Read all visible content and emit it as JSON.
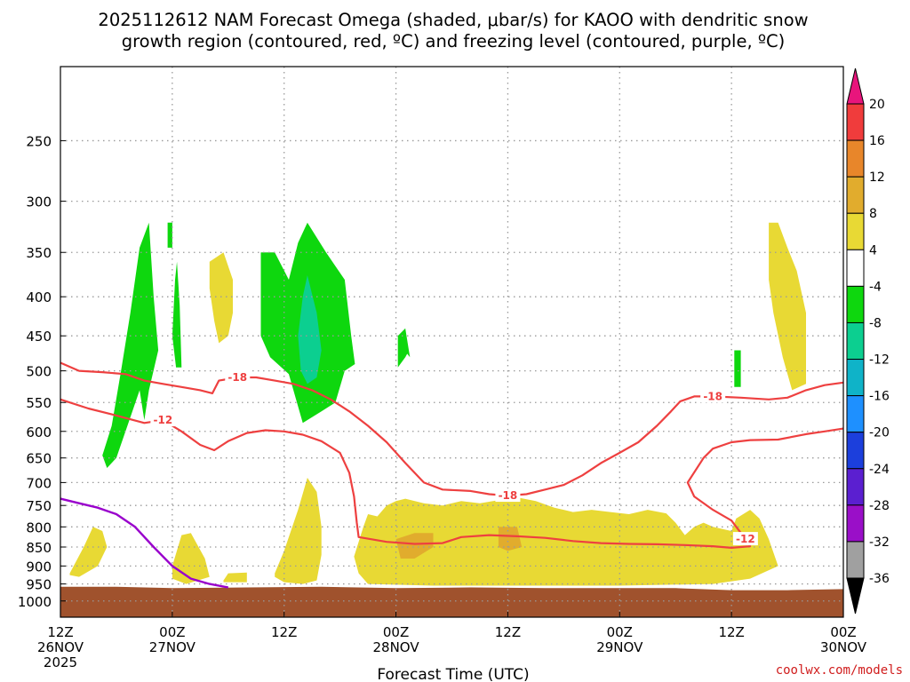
{
  "title": {
    "line1": "2025112612 NAM Forecast Omega (shaded, μbar/s) for KAOO with dendritic snow",
    "line2": "growth region (contoured, red, ºC) and freezing level (contoured, purple, ºC)"
  },
  "credit": "coolwx.com/models",
  "colors": {
    "omega_pos_4_8": "#e8d934",
    "omega_pos_8_12": "#e1ac2d",
    "omega_neg_4_8": "#0ed70e",
    "omega_neg_8_12": "#0ccf90",
    "ground": "#a0522d",
    "dgz_contour": "#ee4040",
    "freezing_contour": "#9900cc",
    "grid": "#9a9a9a"
  },
  "chart_data": {
    "type": "heatmap",
    "title": "2025112612 NAM Forecast Omega (shaded, μbar/s) for KAOO with dendritic snow growth region (contoured, red, ºC) and freezing level (contoured, purple, ºC)",
    "xlabel": "Forecast Time (UTC)",
    "ylabel": "",
    "y_scale": "log pressure (inverted)",
    "xlim_hours": [
      0,
      84
    ],
    "ylim": [
      1050,
      200
    ],
    "grid": "dotted",
    "legend": "colorbar-right",
    "x_ticks": [
      {
        "hour": 0,
        "line1": "12Z",
        "line2": "26NOV",
        "line3": "2025"
      },
      {
        "hour": 12,
        "line1": "00Z",
        "line2": "27NOV",
        "line3": ""
      },
      {
        "hour": 24,
        "line1": "12Z",
        "line2": "",
        "line3": ""
      },
      {
        "hour": 36,
        "line1": "00Z",
        "line2": "28NOV",
        "line3": ""
      },
      {
        "hour": 48,
        "line1": "12Z",
        "line2": "",
        "line3": ""
      },
      {
        "hour": 60,
        "line1": "00Z",
        "line2": "29NOV",
        "line3": ""
      },
      {
        "hour": 72,
        "line1": "12Z",
        "line2": "",
        "line3": ""
      },
      {
        "hour": 84,
        "line1": "00Z",
        "line2": "30NOV",
        "line3": ""
      }
    ],
    "y_ticks": [
      250,
      300,
      350,
      400,
      450,
      500,
      550,
      600,
      650,
      700,
      750,
      800,
      850,
      900,
      950,
      1000
    ],
    "colorbar": {
      "labels": [
        "20",
        "16",
        "12",
        "8",
        "4",
        "-4",
        "-8",
        "-12",
        "-16",
        "-20",
        "-24",
        "-28",
        "-32",
        "-36"
      ],
      "bands": [
        {
          "color": "#f03c3c"
        },
        {
          "color": "#e8862a"
        },
        {
          "color": "#e1ac2d"
        },
        {
          "color": "#e8d934"
        },
        {
          "color": "#ffffff"
        },
        {
          "color": "#0ed70e"
        },
        {
          "color": "#0ccf90"
        },
        {
          "color": "#0fb3c8"
        },
        {
          "color": "#1e90ff"
        },
        {
          "color": "#1c3fdc"
        },
        {
          "color": "#5b1fd0"
        },
        {
          "color": "#9a0fc8"
        },
        {
          "color": "#a0a0a0"
        }
      ],
      "top_arrow_color": "#e8157c",
      "bottom_arrow_color": "#000000"
    },
    "contours": [
      {
        "value": -18,
        "label": "-18",
        "color": "#ee4040",
        "points": [
          [
            0,
            488
          ],
          [
            2,
            500
          ],
          [
            4.5,
            502
          ],
          [
            7,
            505
          ],
          [
            9,
            515
          ],
          [
            11,
            520
          ],
          [
            13,
            525
          ],
          [
            15,
            530
          ],
          [
            16.3,
            535
          ],
          [
            17,
            515
          ],
          [
            19,
            510
          ],
          [
            21,
            510
          ],
          [
            23,
            515
          ],
          [
            25,
            520
          ],
          [
            27,
            530
          ],
          [
            29,
            545
          ],
          [
            31,
            565
          ],
          [
            33,
            590
          ],
          [
            35,
            620
          ],
          [
            37,
            660
          ],
          [
            39,
            700
          ],
          [
            41,
            715
          ],
          [
            44,
            718
          ],
          [
            46,
            725
          ],
          [
            48,
            728
          ],
          [
            50,
            725
          ],
          [
            52,
            715
          ],
          [
            54,
            705
          ],
          [
            56,
            685
          ],
          [
            58,
            660
          ],
          [
            60,
            640
          ],
          [
            62,
            620
          ],
          [
            64,
            590
          ],
          [
            65.5,
            565
          ],
          [
            66.5,
            548
          ],
          [
            68,
            540
          ],
          [
            70,
            540
          ],
          [
            73,
            542
          ],
          [
            76,
            545
          ],
          [
            78,
            542
          ],
          [
            80,
            530
          ],
          [
            82,
            522
          ],
          [
            84,
            518
          ]
        ]
      },
      {
        "value": -12,
        "label": "-12",
        "color": "#ee4040",
        "points": [
          [
            0,
            545
          ],
          [
            3,
            560
          ],
          [
            6,
            572
          ],
          [
            9,
            585
          ],
          [
            11,
            580
          ],
          [
            13,
            600
          ],
          [
            15,
            625
          ],
          [
            16.5,
            635
          ],
          [
            18,
            618
          ],
          [
            20,
            603
          ],
          [
            22,
            598
          ],
          [
            24,
            600
          ],
          [
            26,
            606
          ],
          [
            28,
            618
          ],
          [
            30,
            640
          ],
          [
            31,
            680
          ],
          [
            31.5,
            730
          ],
          [
            31.8,
            790
          ],
          [
            32,
            825
          ],
          [
            35,
            837
          ],
          [
            38,
            842
          ],
          [
            41,
            840
          ],
          [
            43,
            825
          ],
          [
            46,
            820
          ],
          [
            49,
            823
          ],
          [
            52,
            827
          ],
          [
            55,
            835
          ],
          [
            58,
            840
          ],
          [
            61,
            842
          ],
          [
            64,
            843
          ],
          [
            67,
            845
          ],
          [
            70,
            848
          ],
          [
            72,
            852
          ],
          [
            74,
            848
          ],
          [
            73.5,
            830
          ],
          [
            72,
            785
          ],
          [
            70,
            760
          ],
          [
            68,
            730
          ],
          [
            67.3,
            700
          ],
          [
            69,
            650
          ],
          [
            70,
            632
          ],
          [
            72,
            620
          ],
          [
            74,
            616
          ],
          [
            77,
            615
          ],
          [
            80,
            605
          ],
          [
            82,
            600
          ],
          [
            84,
            595
          ]
        ]
      },
      {
        "value": 0,
        "label": "",
        "color": "#9900cc",
        "points": [
          [
            0,
            735
          ],
          [
            2,
            745
          ],
          [
            4,
            755
          ],
          [
            6,
            770
          ],
          [
            8,
            800
          ],
          [
            10,
            850
          ],
          [
            12,
            900
          ],
          [
            14,
            935
          ],
          [
            16,
            950
          ],
          [
            18,
            960
          ]
        ]
      }
    ],
    "omega_regions": [
      {
        "band": "-8 to -4",
        "points": [
          [
            4.5,
            645
          ],
          [
            5.5,
            590
          ],
          [
            6.5,
            500
          ],
          [
            7.5,
            420
          ],
          [
            8.5,
            345
          ],
          [
            9.5,
            320
          ],
          [
            10,
            400
          ],
          [
            10.5,
            470
          ],
          [
            9.5,
            530
          ],
          [
            9,
            580
          ],
          [
            8.5,
            530
          ],
          [
            7.5,
            575
          ],
          [
            6,
            650
          ],
          [
            5,
            670
          ]
        ]
      },
      {
        "band": "-8 to -4",
        "points": [
          [
            11.5,
            320
          ],
          [
            12,
            320
          ],
          [
            12,
            345
          ],
          [
            11.5,
            345
          ]
        ]
      },
      {
        "band": "-8 to -4",
        "points": [
          [
            12,
            450
          ],
          [
            12.3,
            380
          ],
          [
            12.5,
            360
          ],
          [
            12.8,
            410
          ],
          [
            13,
            495
          ],
          [
            12.4,
            495
          ]
        ]
      },
      {
        "band": "-8 to -4",
        "points": [
          [
            21.5,
            350
          ],
          [
            23,
            350
          ],
          [
            24.5,
            380
          ],
          [
            25.5,
            340
          ],
          [
            26.5,
            320
          ],
          [
            28.5,
            350
          ],
          [
            30.5,
            380
          ],
          [
            31.2,
            450
          ],
          [
            31.6,
            490
          ],
          [
            30.5,
            500
          ],
          [
            29.5,
            550
          ],
          [
            28,
            565
          ],
          [
            26,
            585
          ],
          [
            24.5,
            505
          ],
          [
            22.5,
            480
          ],
          [
            21.5,
            450
          ]
        ]
      },
      {
        "band": "-8 to -4",
        "points": [
          [
            36.2,
            450
          ],
          [
            37,
            440
          ],
          [
            37.5,
            480
          ],
          [
            37.2,
            475
          ],
          [
            37,
            480
          ],
          [
            36.2,
            495
          ]
        ]
      },
      {
        "band": "-8 to -4",
        "points": [
          [
            72.3,
            470
          ],
          [
            73,
            470
          ],
          [
            73,
            525
          ],
          [
            72.3,
            525
          ]
        ]
      },
      {
        "band": "-12 to -8",
        "points": [
          [
            25.5,
            450
          ],
          [
            26,
            400
          ],
          [
            26.5,
            375
          ],
          [
            27.5,
            420
          ],
          [
            28,
            470
          ],
          [
            27.5,
            510
          ],
          [
            26.5,
            520
          ],
          [
            25.8,
            500
          ]
        ]
      },
      {
        "band": "4 to 8",
        "points": [
          [
            16,
            360
          ],
          [
            17.5,
            350
          ],
          [
            18.5,
            380
          ],
          [
            18.5,
            420
          ],
          [
            18,
            450
          ],
          [
            17,
            460
          ],
          [
            16.5,
            430
          ],
          [
            16,
            390
          ]
        ]
      },
      {
        "band": "4 to 8",
        "points": [
          [
            76,
            320
          ],
          [
            77,
            320
          ],
          [
            78,
            345
          ],
          [
            79,
            370
          ],
          [
            80,
            420
          ],
          [
            80,
            520
          ],
          [
            78.5,
            530
          ],
          [
            77.5,
            480
          ],
          [
            76.5,
            420
          ],
          [
            76,
            380
          ]
        ]
      },
      {
        "band": "4 to 8",
        "points": [
          [
            1,
            920
          ],
          [
            2.5,
            850
          ],
          [
            3.5,
            800
          ],
          [
            4.5,
            810
          ],
          [
            5,
            850
          ],
          [
            4,
            900
          ],
          [
            2,
            930
          ],
          [
            1,
            925
          ]
        ]
      },
      {
        "band": "4 to 8",
        "points": [
          [
            12,
            900
          ],
          [
            13,
            820
          ],
          [
            14,
            815
          ],
          [
            15.5,
            880
          ],
          [
            16,
            930
          ],
          [
            13.5,
            950
          ],
          [
            12,
            935
          ]
        ]
      },
      {
        "band": "4 to 8",
        "points": [
          [
            17.5,
            940
          ],
          [
            18,
            920
          ],
          [
            20,
            918
          ],
          [
            20,
            945
          ],
          [
            17.5,
            945
          ]
        ]
      },
      {
        "band": "4 to 8",
        "points": [
          [
            23,
            920
          ],
          [
            24,
            860
          ],
          [
            25.5,
            760
          ],
          [
            26.5,
            690
          ],
          [
            27.5,
            720
          ],
          [
            28,
            800
          ],
          [
            28,
            870
          ],
          [
            27.5,
            940
          ],
          [
            26,
            950
          ],
          [
            24,
            945
          ],
          [
            23,
            930
          ]
        ]
      },
      {
        "band": "4 to 8",
        "points": [
          [
            31.5,
            875
          ],
          [
            32.5,
            800
          ],
          [
            33,
            770
          ],
          [
            34,
            775
          ],
          [
            35,
            750
          ],
          [
            36,
            740
          ],
          [
            37,
            735
          ],
          [
            39,
            745
          ],
          [
            41,
            750
          ],
          [
            43,
            740
          ],
          [
            45,
            745
          ],
          [
            47,
            738
          ],
          [
            49,
            732
          ],
          [
            51,
            740
          ],
          [
            53,
            755
          ],
          [
            55,
            765
          ],
          [
            57,
            760
          ],
          [
            59,
            765
          ],
          [
            61,
            770
          ],
          [
            63,
            760
          ],
          [
            65,
            768
          ],
          [
            66,
            790
          ],
          [
            67,
            820
          ],
          [
            68,
            800
          ],
          [
            69,
            790
          ],
          [
            70,
            800
          ],
          [
            72,
            810
          ],
          [
            72.5,
            780
          ],
          [
            74,
            760
          ],
          [
            75,
            780
          ],
          [
            76,
            830
          ],
          [
            77,
            900
          ],
          [
            74,
            935
          ],
          [
            70,
            950
          ],
          [
            60,
            955
          ],
          [
            50,
            955
          ],
          [
            40,
            955
          ],
          [
            33,
            950
          ],
          [
            32,
            920
          ]
        ]
      },
      {
        "band": "8 to 12",
        "points": [
          [
            36,
            830
          ],
          [
            38,
            815
          ],
          [
            40,
            815
          ],
          [
            40,
            850
          ],
          [
            38,
            880
          ],
          [
            36.5,
            880
          ]
        ]
      },
      {
        "band": "8 to 12",
        "points": [
          [
            47,
            800
          ],
          [
            49,
            800
          ],
          [
            49.5,
            850
          ],
          [
            48,
            860
          ],
          [
            47,
            850
          ]
        ]
      }
    ],
    "ground": [
      [
        0,
        958
      ],
      [
        6,
        958
      ],
      [
        12,
        962
      ],
      [
        20,
        960
      ],
      [
        28,
        958
      ],
      [
        36,
        962
      ],
      [
        44,
        960
      ],
      [
        52,
        962
      ],
      [
        60,
        962
      ],
      [
        66,
        962
      ],
      [
        72,
        968
      ],
      [
        78,
        968
      ],
      [
        84,
        965
      ],
      [
        84,
        1050
      ],
      [
        0,
        1050
      ]
    ]
  }
}
